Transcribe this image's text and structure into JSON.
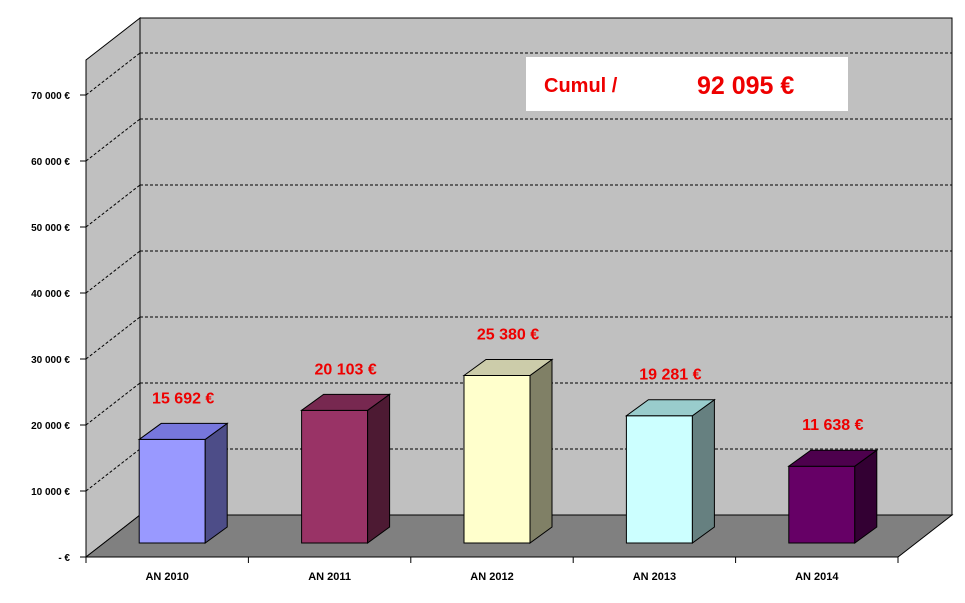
{
  "chart_data": {
    "type": "bar",
    "categories": [
      "AN 2010",
      "AN 2011",
      "AN 2012",
      "AN 2013",
      "AN 2014"
    ],
    "values": [
      15692,
      20103,
      25380,
      19281,
      11638
    ],
    "data_labels": [
      "15 692 €",
      "20 103 €",
      "25 380 €",
      "19 281 €",
      "11 638 €"
    ],
    "colors": [
      {
        "front": "#9999ff",
        "side": "#4d4d88",
        "top": "#7777dd"
      },
      {
        "front": "#993366",
        "side": "#4d1a33",
        "top": "#772850"
      },
      {
        "front": "#ffffcc",
        "side": "#808066",
        "top": "#ccccaa"
      },
      {
        "front": "#ccffff",
        "side": "#668080",
        "top": "#99cccc"
      },
      {
        "front": "#660066",
        "side": "#330033",
        "top": "#4d004d"
      }
    ],
    "y_ticks": [
      0,
      10000,
      20000,
      30000,
      40000,
      50000,
      60000,
      70000
    ],
    "y_tick_labels": [
      "-   €",
      "10 000 €",
      "20 000 €",
      "30 000 €",
      "40 000 €",
      "50 000 €",
      "60 000 €",
      "70 000 €"
    ],
    "ylim": [
      0,
      75000
    ],
    "title": "",
    "xlabel": "",
    "ylabel": "",
    "grid": true,
    "legend": "none",
    "annotation": {
      "label": "Cumul /",
      "value": "92 095 €"
    }
  }
}
